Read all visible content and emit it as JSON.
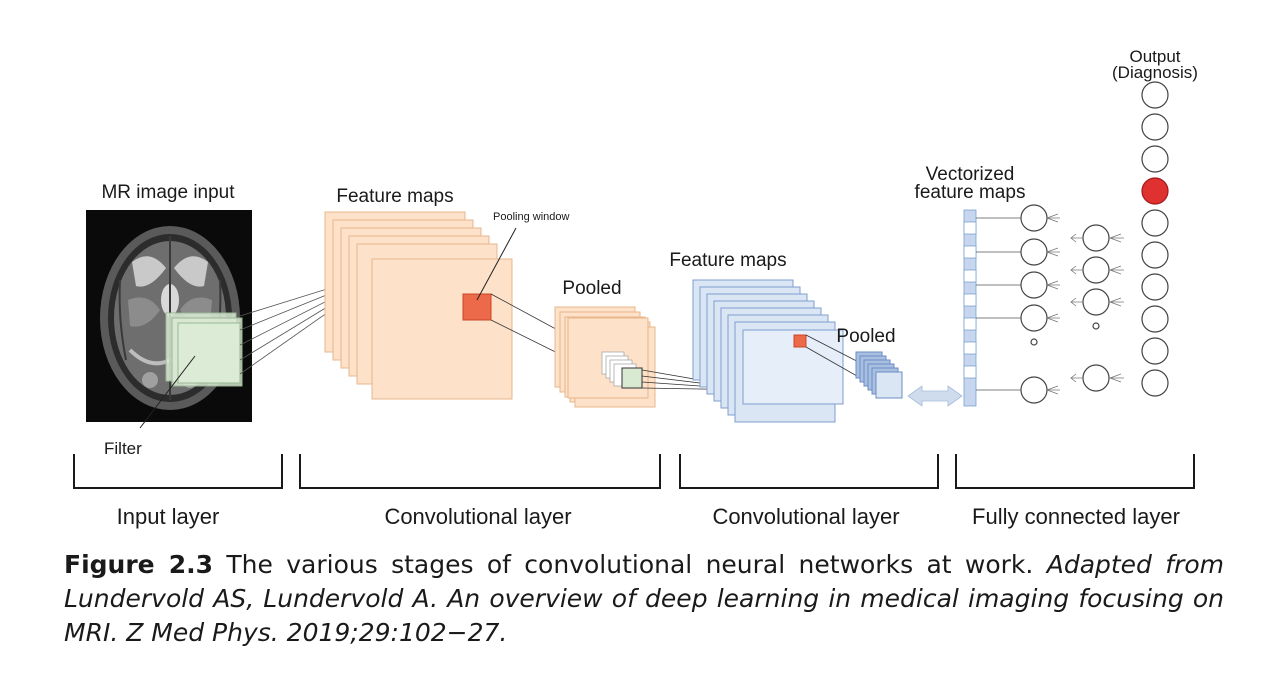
{
  "labels": {
    "mr_input": "MR image input",
    "filter": "Filter",
    "feature_maps_1": "Feature maps",
    "pooling_window": "Pooling window",
    "pooled_1": "Pooled",
    "feature_maps_2": "Feature maps",
    "pooled_2": "Pooled",
    "vectorized_line1": "Vectorized",
    "vectorized_line2": "feature maps",
    "output_line1": "Output",
    "output_line2": "(Diagnosis)"
  },
  "layers": {
    "input": "Input layer",
    "conv1": "Convolutional layer",
    "conv2": "Convolutional layer",
    "fc": "Fully connected layer"
  },
  "caption": {
    "figure_label": "Figure 2.3",
    "text": " The various stages of convolutional neural networks at work. ",
    "source": "Adapted from Lundervold AS, Lundervold A. An overview of deep learning in medical imaging focusing on MRI. Z Med Phys. 2019;29:102−27."
  },
  "colors": {
    "feature_map_fill": "#fde1c8",
    "feature_map_stroke": "#e8b78c",
    "pooling_window": "#ec6a4a",
    "filter_fill": "#d9ead3",
    "blue_map_fill": "#dbe6f5",
    "blue_map_stroke": "#7f9fd0",
    "output_active": "#e03131"
  }
}
